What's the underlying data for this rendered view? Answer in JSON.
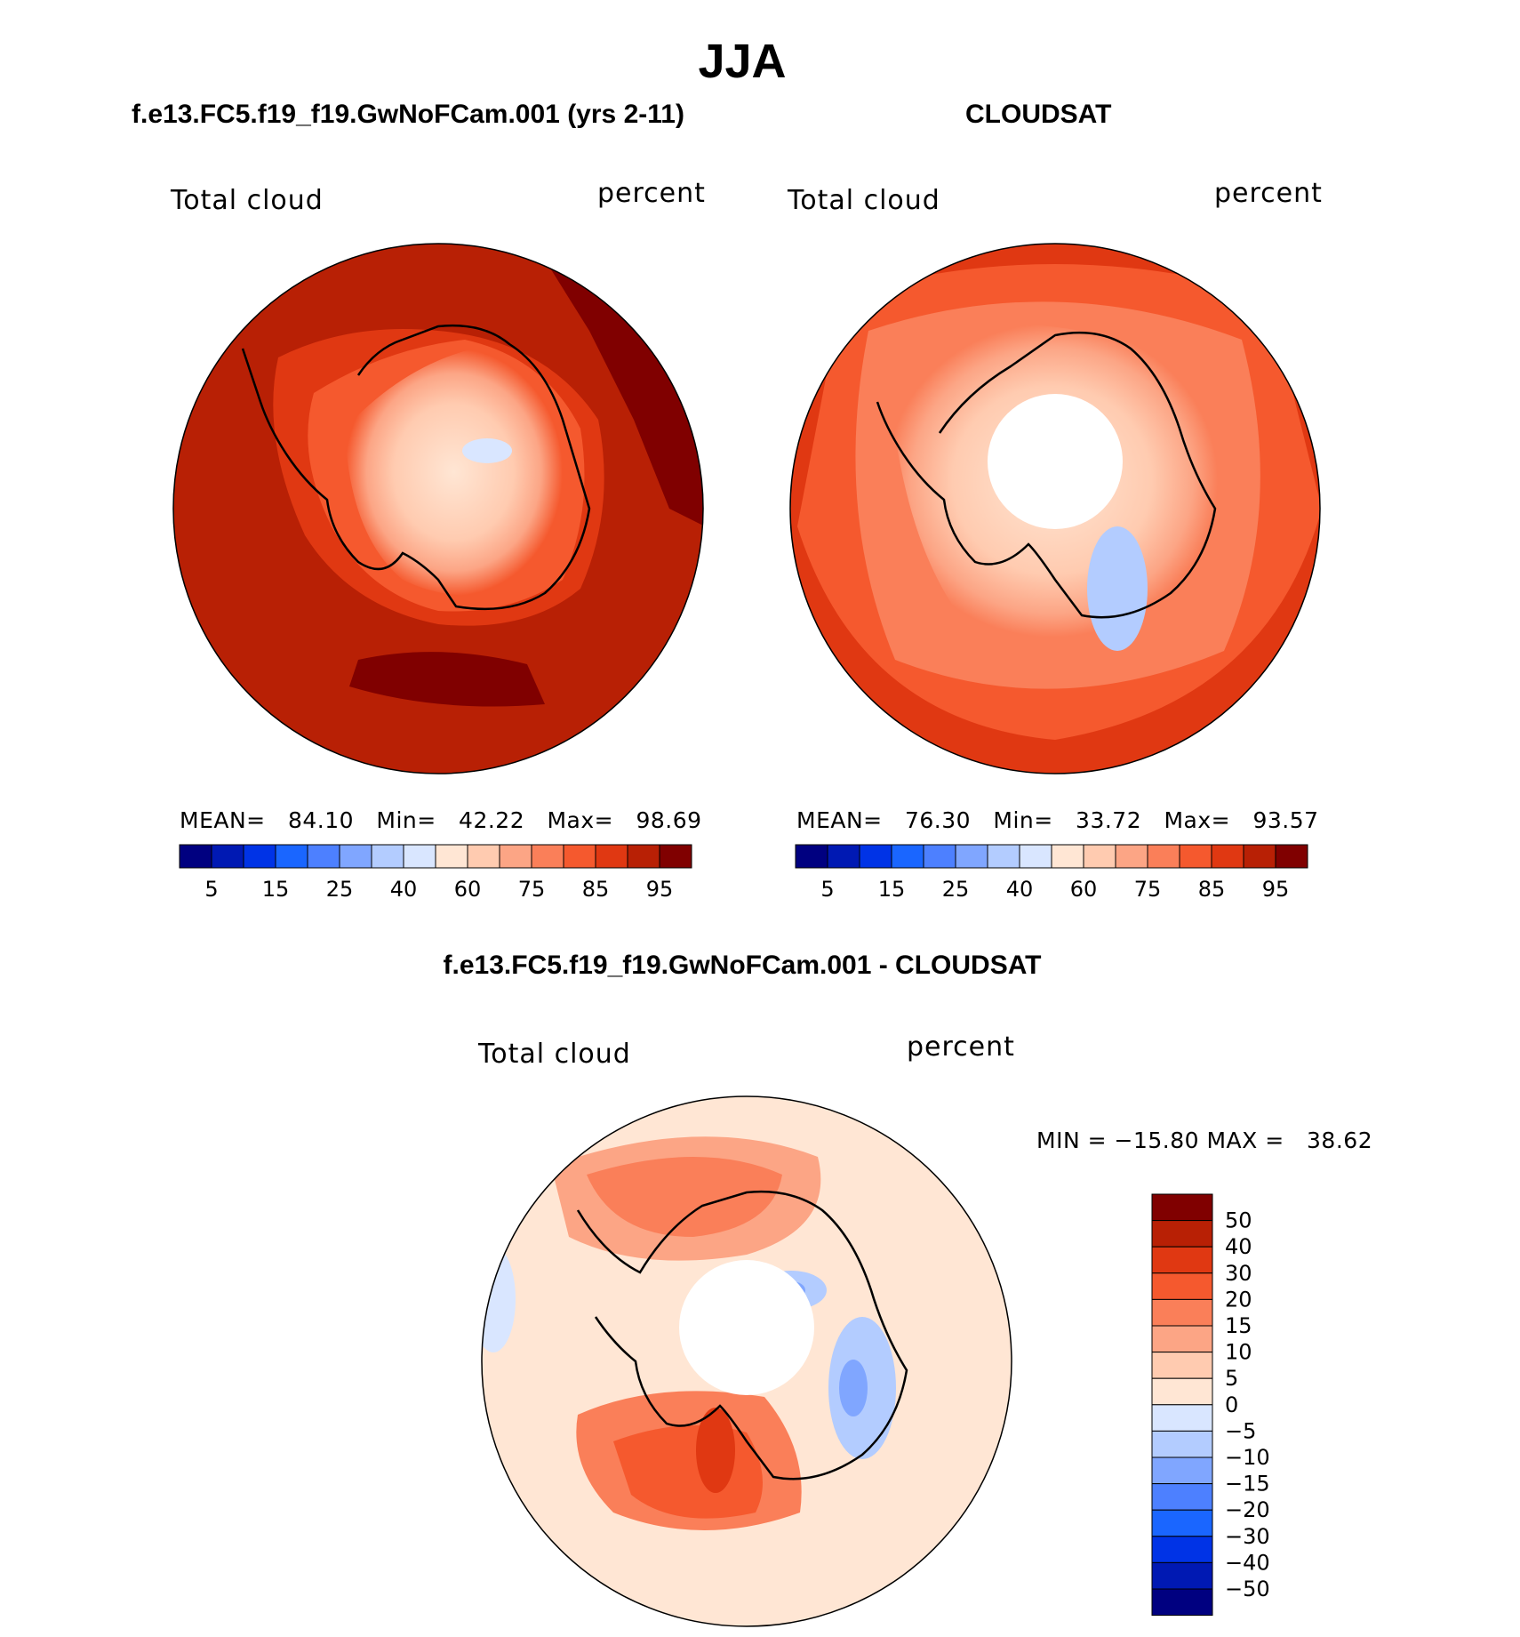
{
  "title": "JJA",
  "chart_data": [
    {
      "type": "heatmap",
      "projection": "south polar stereographic",
      "title": "f.e13.FC5.f19_f19.GwNoFCam.001 (yrs 2-11)",
      "variable": "Total cloud",
      "units": "percent",
      "stats": {
        "mean_label": "MEAN=",
        "mean": "84.10",
        "min_label": "Min=",
        "min": "42.22",
        "max_label": "Max=",
        "max": "98.69"
      },
      "levels": [
        5,
        10,
        15,
        20,
        25,
        30,
        40,
        50,
        60,
        70,
        75,
        80,
        85,
        90,
        95
      ],
      "tick_labels": [
        "5",
        "15",
        "25",
        "40",
        "60",
        "75",
        "85",
        "95"
      ],
      "colors": [
        "#000080",
        "#0019b3",
        "#0033e6",
        "#1a66ff",
        "#4d80ff",
        "#80a6ff",
        "#b3ccff",
        "#d9e6ff",
        "#ffe6d4",
        "#ffcbb0",
        "#fca585",
        "#fa7f59",
        "#f5592e",
        "#e03812",
        "#b82005",
        "#800000"
      ]
    },
    {
      "type": "heatmap",
      "projection": "south polar stereographic",
      "title": "CLOUDSAT",
      "variable": "Total cloud",
      "units": "percent",
      "stats": {
        "mean_label": "MEAN=",
        "mean": "76.30",
        "min_label": "Min=",
        "min": "33.72",
        "max_label": "Max=",
        "max": "93.57"
      },
      "levels": [
        5,
        10,
        15,
        20,
        25,
        30,
        40,
        50,
        60,
        70,
        75,
        80,
        85,
        90,
        95
      ],
      "tick_labels": [
        "5",
        "15",
        "25",
        "40",
        "60",
        "75",
        "85",
        "95"
      ],
      "colors": [
        "#000080",
        "#0019b3",
        "#0033e6",
        "#1a66ff",
        "#4d80ff",
        "#80a6ff",
        "#b3ccff",
        "#d9e6ff",
        "#ffe6d4",
        "#ffcbb0",
        "#fca585",
        "#fa7f59",
        "#f5592e",
        "#e03812",
        "#b82005",
        "#800000"
      ]
    },
    {
      "type": "heatmap",
      "projection": "south polar stereographic",
      "title": "f.e13.FC5.f19_f19.GwNoFCam.001 - CLOUDSAT",
      "variable": "Total cloud",
      "units": "percent",
      "stats": {
        "min_label": "MIN =",
        "min": "−15.80",
        "max_label": "MAX =",
        "max": "38.62"
      },
      "levels": [
        50,
        40,
        30,
        20,
        15,
        10,
        5,
        0,
        -5,
        -10,
        -15,
        -20,
        -30,
        -40,
        -50
      ],
      "tick_labels": [
        "50",
        "40",
        "30",
        "20",
        "15",
        "10",
        "5",
        "0",
        "−5",
        "−10",
        "−15",
        "−20",
        "−30",
        "−40",
        "−50"
      ],
      "colors": [
        "#800000",
        "#b82005",
        "#e03812",
        "#f5592e",
        "#fa7f59",
        "#fca585",
        "#ffcbb0",
        "#ffe6d4",
        "#d9e6ff",
        "#b3ccff",
        "#80a6ff",
        "#4d80ff",
        "#1a66ff",
        "#0033e6",
        "#0019b3",
        "#000080"
      ]
    }
  ]
}
